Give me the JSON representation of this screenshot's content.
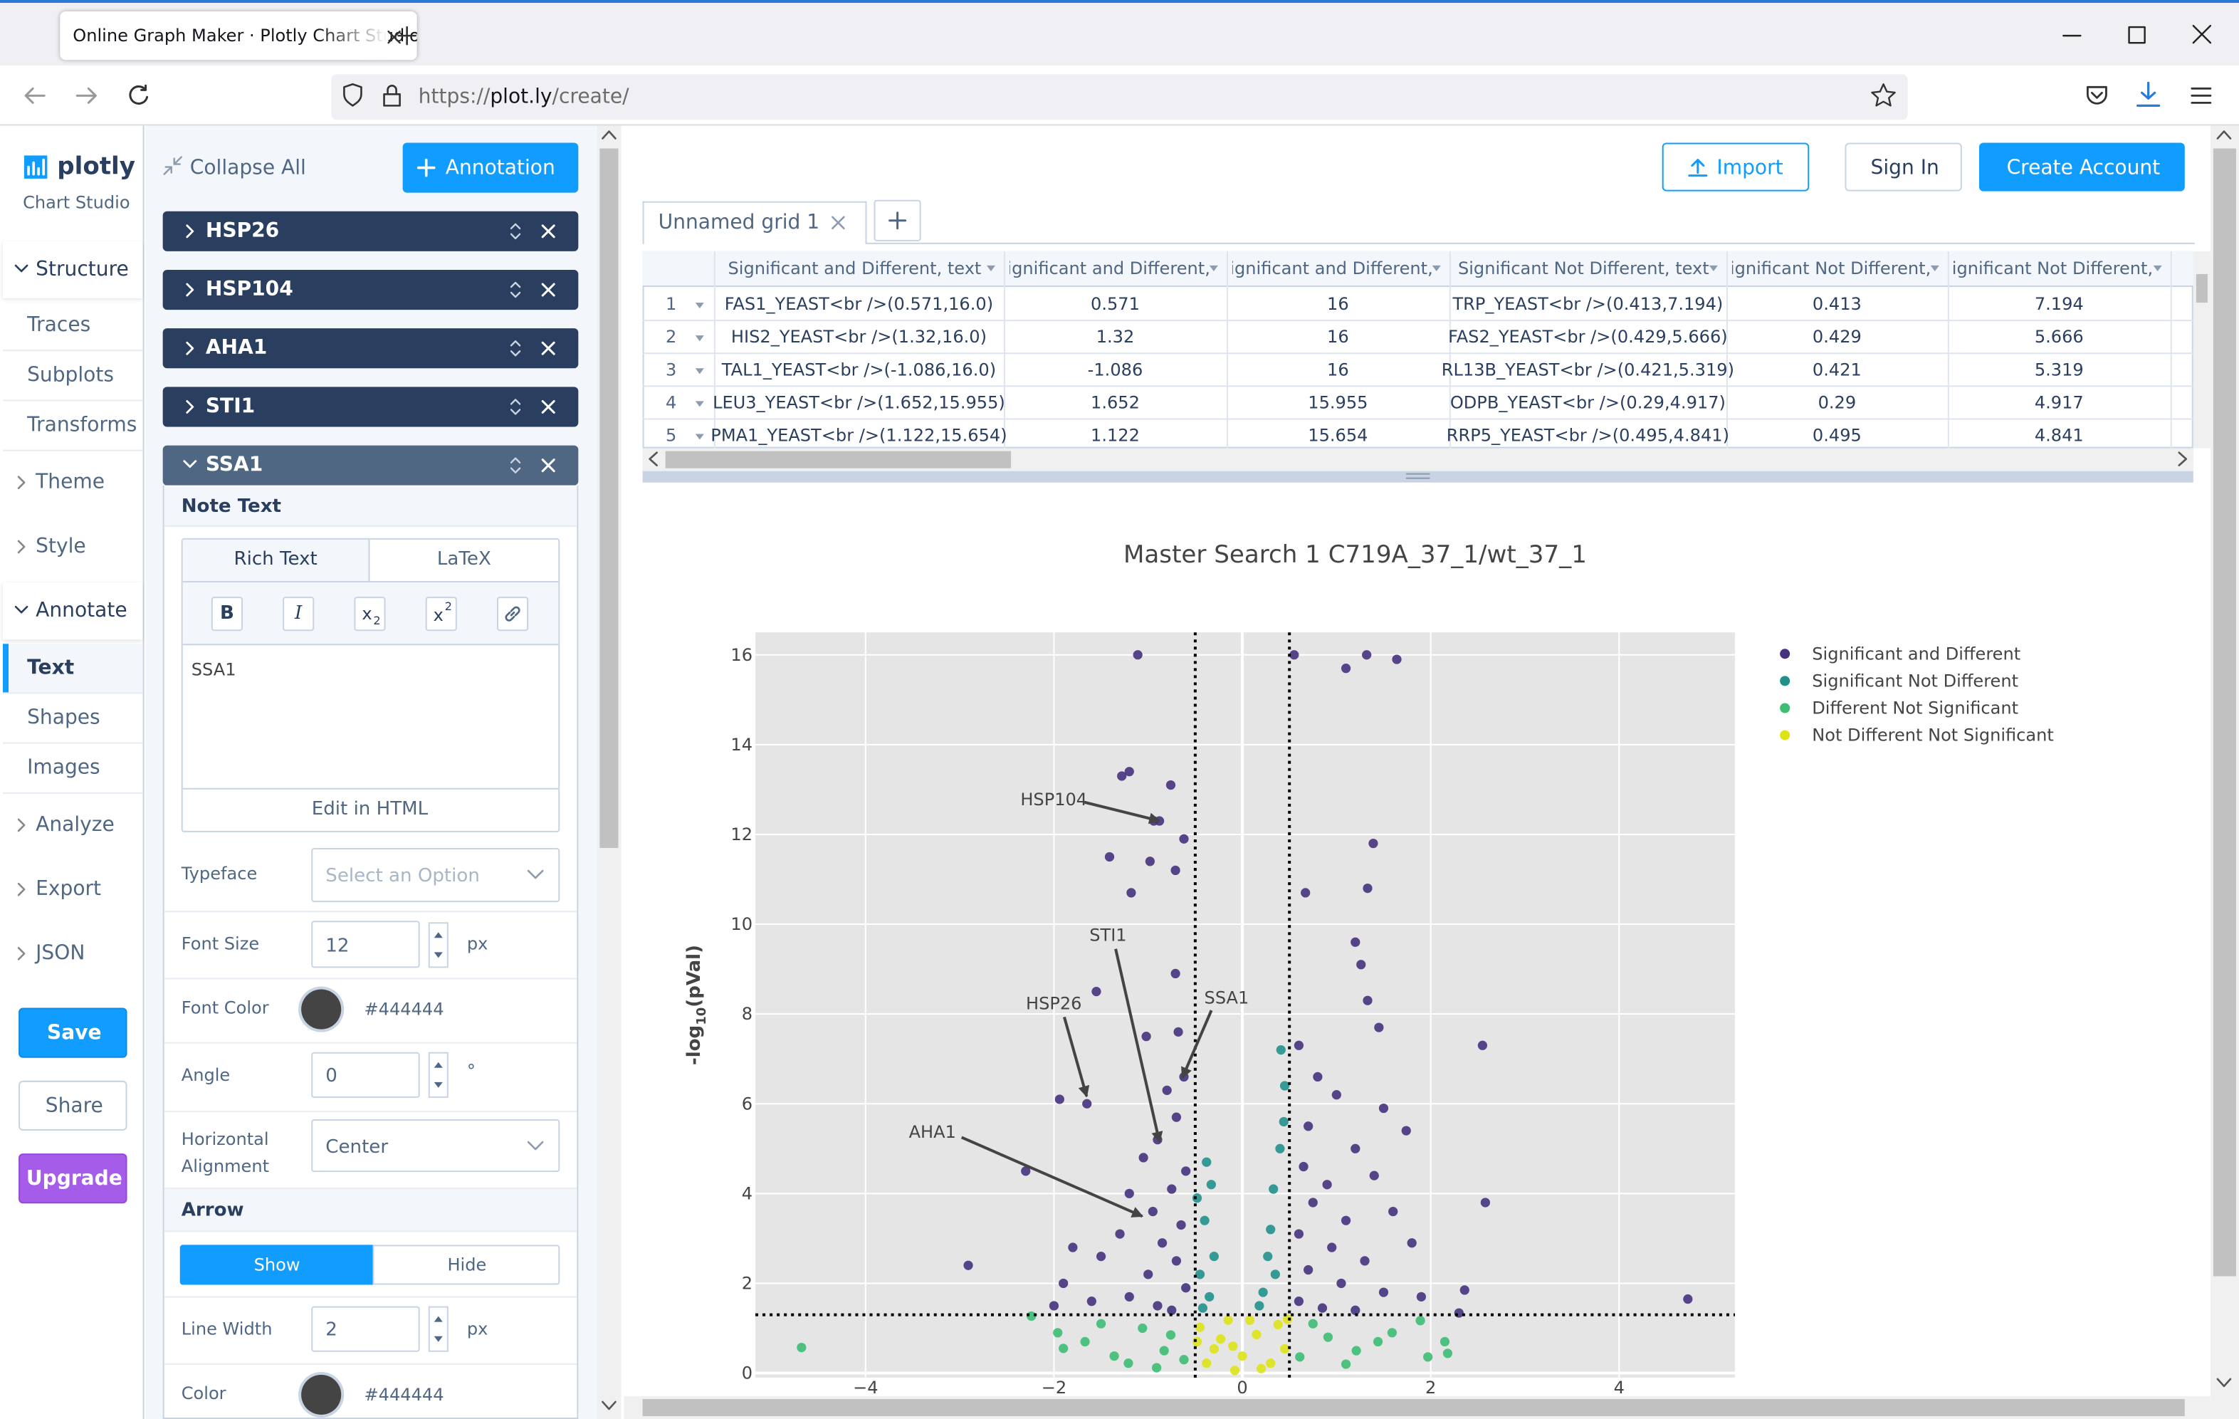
{
  "browser": {
    "tab_title": "Online Graph Maker · Plotly Chart Studio",
    "url_scheme": "https://",
    "url_host": "plot.ly",
    "url_path": "/create/"
  },
  "sidebar": {
    "logo": "plotly",
    "subtitle": "Chart Studio",
    "sections": [
      {
        "label": "Structure",
        "items": [
          "Traces",
          "Subplots",
          "Transforms"
        ]
      },
      {
        "label": "Theme"
      },
      {
        "label": "Style"
      },
      {
        "label": "Annotate",
        "items": [
          "Text",
          "Shapes",
          "Images"
        ]
      },
      {
        "label": "Analyze"
      },
      {
        "label": "Export"
      },
      {
        "label": "JSON"
      }
    ],
    "buttons": [
      "Save",
      "Share",
      "Upgrade"
    ]
  },
  "panel": {
    "collapse_all": "Collapse All",
    "add_button": "Annotation",
    "annotations": [
      "HSP26",
      "HSP104",
      "AHA1",
      "STI1",
      "SSA1"
    ],
    "note_text": "Note Text",
    "tabs": [
      "Rich Text",
      "LaTeX"
    ],
    "toolbar": {
      "bold": "B",
      "italic": "I",
      "sub": [
        "x",
        "2"
      ],
      "sup": [
        "x",
        "2"
      ]
    },
    "editor_text": "SSA1",
    "edit_html": "Edit in HTML",
    "typeface": {
      "label": "Typeface",
      "placeholder": "Select an Option"
    },
    "font_size": {
      "label": "Font Size",
      "value": "12",
      "unit": "px"
    },
    "font_color": {
      "label": "Font Color",
      "value": "#444444"
    },
    "angle": {
      "label": "Angle",
      "value": "0",
      "unit": "°"
    },
    "alignment": {
      "label": "Horizontal Alignment",
      "value": "Center"
    },
    "arrow": "Arrow",
    "arrow_toggle": [
      "Show",
      "Hide"
    ],
    "line_width": {
      "label": "Line Width",
      "value": "2",
      "unit": "px"
    },
    "color": {
      "label": "Color",
      "value": "#444444"
    }
  },
  "header_buttons": [
    "Import",
    "Sign In",
    "Create Account"
  ],
  "grid": {
    "tab": "Unnamed grid 1",
    "columns": [
      "Significant and Different, text",
      "Significant and Different, x",
      "Significant and Different, y",
      "Significant Not Different, text",
      "Significant Not Different, x",
      "Significant Not Different, y"
    ],
    "row_numbers": [
      "1",
      "2",
      "3",
      "4",
      "5"
    ],
    "rows": [
      [
        "FAS1_YEAST<br />(0.571,16.0)",
        "0.571",
        "16",
        "TRP_YEAST<br />(0.413,7.194)",
        "0.413",
        "7.194"
      ],
      [
        "HIS2_YEAST<br />(1.32,16.0)",
        "1.32",
        "16",
        "FAS2_YEAST<br />(0.429,5.666)",
        "0.429",
        "5.666"
      ],
      [
        "TAL1_YEAST<br />(-1.086,16.0)",
        "-1.086",
        "16",
        "RL13B_YEAST<br />(0.421,5.319)",
        "0.421",
        "5.319"
      ],
      [
        "LEU3_YEAST<br />(1.652,15.955)",
        "1.652",
        "15.955",
        "ODPB_YEAST<br />(0.29,4.917)",
        "0.29",
        "4.917"
      ],
      [
        "PMA1_YEAST<br />(1.122,15.654)",
        "1.122",
        "15.654",
        "RRP5_YEAST<br />(0.495,4.841)",
        "0.495",
        "4.841"
      ]
    ]
  },
  "chart_data": {
    "type": "scatter",
    "title": "Master Search 1 C719A_37_1/wt_37_1",
    "ylabel_parts": [
      "-log",
      "10",
      "(pVal)"
    ],
    "xlim": [
      -5.17,
      5.23
    ],
    "ylim": [
      -0.1,
      16.5
    ],
    "xticks": [
      {
        "value": -4,
        "label": "−4"
      },
      {
        "value": -2,
        "label": "−2"
      },
      0,
      2,
      4
    ],
    "yticks": [
      0,
      2,
      4,
      6,
      8,
      10,
      12,
      14,
      16
    ],
    "grid": true,
    "thresholds": {
      "x": [
        -0.5,
        0.5
      ],
      "y": 1.3
    },
    "legend": "top-right",
    "annotations": [
      "HSP104",
      "STI1",
      "SSA1",
      "HSP26",
      "AHA1"
    ],
    "series": [
      {
        "name": "Significant and Different",
        "color": "#46327e",
        "x": [
          -1.11,
          0.55,
          1.1,
          1.32,
          1.64,
          -1.2,
          -1.28,
          -0.76,
          -0.88,
          -0.94,
          -0.62,
          -1.41,
          -0.98,
          -0.71,
          -1.18,
          1.39,
          1.33,
          0.67,
          1.2,
          1.26,
          1.33,
          1.45,
          2.55,
          -1.55,
          -0.71,
          -1.02,
          -0.68,
          -1.94,
          -1.65,
          -2.3,
          -2.91,
          2.58,
          1.74,
          1.5,
          2.36,
          4.73,
          2.3,
          -0.62,
          -0.8,
          -0.7,
          -0.9,
          -1.05,
          -0.6,
          -0.75,
          -1.2,
          -0.95,
          -0.65,
          -1.3,
          -0.85,
          -1.5,
          -0.7,
          -1.0,
          -1.8,
          -1.9,
          -0.6,
          -1.2,
          -0.9,
          -1.6,
          -2.0,
          -0.75,
          0.6,
          0.8,
          1.0,
          0.7,
          1.2,
          0.65,
          0.9,
          1.4,
          0.75,
          1.1,
          1.6,
          0.6,
          0.95,
          1.3,
          1.8,
          0.7,
          1.05,
          1.5,
          0.6,
          0.85,
          1.9,
          1.2
        ],
        "y": [
          16.0,
          16.0,
          15.7,
          16.0,
          15.9,
          13.4,
          13.3,
          13.1,
          12.3,
          12.3,
          11.9,
          11.5,
          11.4,
          11.2,
          10.7,
          11.8,
          10.8,
          10.7,
          9.6,
          9.1,
          8.3,
          7.7,
          7.3,
          8.5,
          8.9,
          7.5,
          7.6,
          6.1,
          6.0,
          4.5,
          2.4,
          3.8,
          5.4,
          5.9,
          1.85,
          1.65,
          1.34,
          6.6,
          6.3,
          5.7,
          5.2,
          4.8,
          4.5,
          4.1,
          4.0,
          3.6,
          3.3,
          3.1,
          2.9,
          2.6,
          2.5,
          2.2,
          2.8,
          2.0,
          1.9,
          1.7,
          1.5,
          1.6,
          1.5,
          1.4,
          7.3,
          6.6,
          6.2,
          5.5,
          5.0,
          4.6,
          4.2,
          4.4,
          3.8,
          3.4,
          3.6,
          3.1,
          2.8,
          2.5,
          2.9,
          2.3,
          2.0,
          1.8,
          1.6,
          1.45,
          1.7,
          1.4
        ]
      },
      {
        "name": "Significant Not Different",
        "color": "#21908d",
        "x": [
          -0.38,
          -0.33,
          -0.4,
          -0.3,
          -0.45,
          -0.35,
          -0.42,
          0.41,
          0.44,
          0.4,
          0.33,
          0.3,
          0.27,
          0.22,
          0.18,
          0.35,
          0.45,
          -0.48
        ],
        "y": [
          4.7,
          4.2,
          3.4,
          2.6,
          2.2,
          1.7,
          1.45,
          7.2,
          5.6,
          5.0,
          4.1,
          3.2,
          2.6,
          1.8,
          1.5,
          2.2,
          6.4,
          3.9
        ]
      },
      {
        "name": "Different Not Significant",
        "color": "#3dbc74",
        "x": [
          -4.68,
          -2.24,
          -1.96,
          -1.9,
          -1.67,
          -1.36,
          -1.06,
          -0.83,
          0.91,
          1.21,
          1.59,
          1.97,
          2.15,
          2.18,
          1.89,
          1.44,
          0.61,
          -1.21,
          -0.91,
          -0.76,
          0.75,
          -0.62,
          1.1,
          -1.5
        ],
        "y": [
          0.57,
          1.27,
          0.9,
          0.55,
          0.7,
          0.38,
          1.0,
          0.5,
          0.8,
          0.5,
          0.9,
          0.36,
          0.7,
          0.44,
          1.17,
          0.7,
          0.36,
          0.22,
          0.12,
          0.85,
          1.1,
          0.3,
          0.2,
          1.1
        ]
      },
      {
        "name": "Not Different Not Significant",
        "color": "#dde318",
        "x": [
          -0.45,
          -0.3,
          -0.15,
          0,
          0.15,
          0.38,
          -0.38,
          0.3,
          0.08,
          -0.23,
          -0.08,
          0.45,
          -0.1,
          0.2,
          -0.48,
          0.48
        ],
        "y": [
          1.02,
          0.54,
          1.18,
          0.38,
          0.86,
          1.08,
          0.22,
          0.22,
          1.18,
          0.76,
          0.06,
          0.54,
          0.6,
          0.1,
          0.7,
          1.2
        ]
      }
    ]
  }
}
